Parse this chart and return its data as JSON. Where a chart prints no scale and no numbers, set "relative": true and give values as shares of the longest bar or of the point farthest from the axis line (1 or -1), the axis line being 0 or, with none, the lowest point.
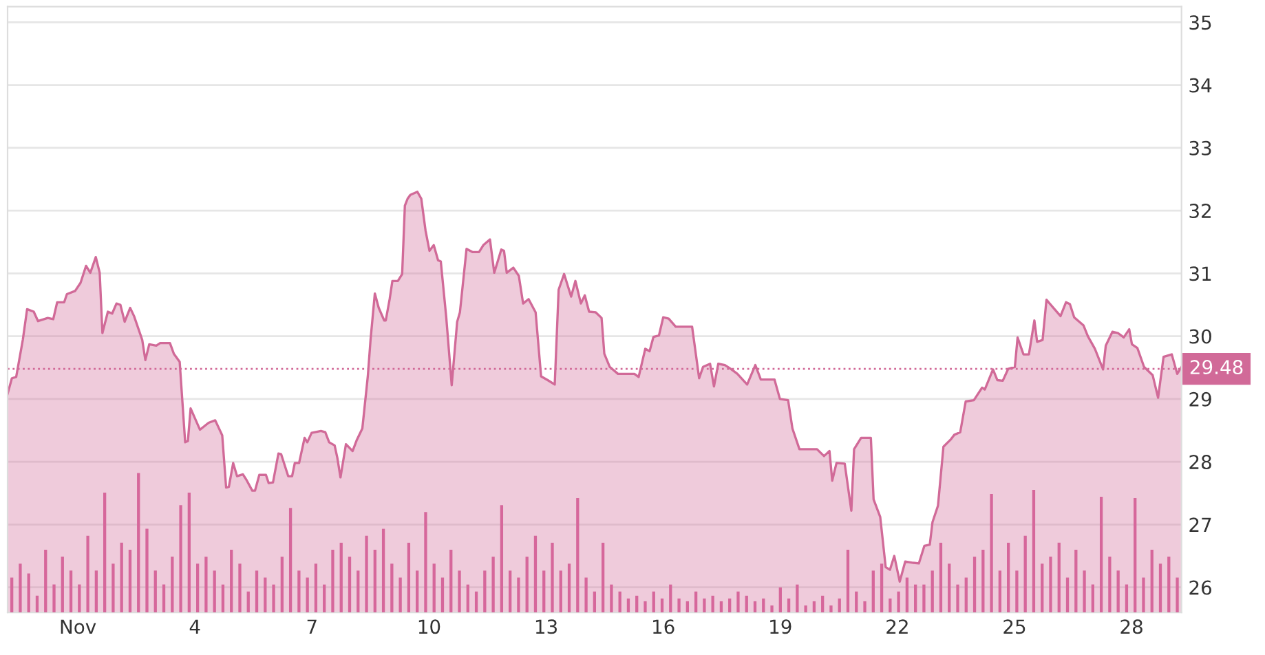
{
  "chart_data": [
    {
      "type": "area",
      "x": [
        -0.8,
        -0.69,
        -0.58,
        -0.41,
        -0.3,
        -0.13,
        -0.02,
        0.23,
        0.37,
        0.47,
        0.65,
        0.72,
        0.93,
        1.07,
        1.21,
        1.32,
        1.46,
        1.56,
        1.63,
        1.77,
        1.88,
        1.99,
        2.09,
        2.2,
        2.34,
        2.44,
        2.65,
        2.73,
        2.83,
        3.01,
        3.11,
        3.36,
        3.46,
        3.61,
        3.75,
        3.82,
        3.89,
        4.13,
        4.35,
        4.52,
        4.7,
        4.8,
        4.87,
        4.98,
        5.08,
        5.23,
        5.33,
        5.47,
        5.54,
        5.65,
        5.82,
        5.89,
        6.0,
        6.14,
        6.21,
        6.39,
        6.49,
        6.56,
        6.67,
        6.81,
        6.88,
        6.99,
        7.23,
        7.34,
        7.44,
        7.58,
        7.65,
        7.73,
        7.87,
        8.04,
        8.15,
        8.29,
        8.43,
        8.5,
        8.61,
        8.71,
        8.85,
        8.89,
        8.99,
        9.06,
        9.2,
        9.31,
        9.38,
        9.45,
        9.52,
        9.7,
        9.8,
        9.91,
        10.01,
        10.12,
        10.23,
        10.3,
        10.44,
        10.58,
        10.72,
        10.79,
        10.96,
        11.11,
        11.28,
        11.39,
        11.56,
        11.67,
        11.85,
        11.92,
        11.99,
        12.16,
        12.3,
        12.41,
        12.55,
        12.73,
        12.87,
        13.04,
        13.22,
        13.32,
        13.46,
        13.64,
        13.75,
        13.89,
        13.99,
        14.1,
        14.27,
        14.42,
        14.49,
        14.63,
        14.84,
        15.26,
        15.37,
        15.54,
        15.65,
        15.75,
        15.89,
        16.0,
        16.14,
        16.32,
        16.74,
        16.92,
        17.02,
        17.2,
        17.3,
        17.41,
        17.58,
        17.73,
        17.9,
        18.15,
        18.36,
        18.5,
        18.85,
        18.99,
        19.2,
        19.31,
        19.49,
        19.94,
        20.12,
        20.26,
        20.33,
        20.44,
        20.65,
        20.82,
        20.89,
        21.07,
        21.32,
        21.39,
        21.56,
        21.7,
        21.81,
        21.92,
        22.06,
        22.2,
        22.41,
        22.55,
        22.69,
        22.83,
        22.9,
        23.04,
        23.18,
        23.36,
        23.46,
        23.61,
        23.75,
        23.96,
        24.17,
        24.24,
        24.45,
        24.56,
        24.7,
        24.84,
        25.01,
        25.08,
        25.23,
        25.37,
        25.51,
        25.58,
        25.72,
        25.82,
        26.0,
        26.18,
        26.32,
        26.42,
        26.53,
        26.77,
        26.88,
        27.06,
        27.27,
        27.34,
        27.51,
        27.65,
        27.8,
        27.94,
        28.01,
        28.15,
        28.32,
        28.54,
        28.68,
        28.82,
        29.03,
        29.17,
        29.28
      ],
      "series": [
        {
          "color": "#d16a98",
          "values": [
            29.08,
            29.33,
            29.35,
            29.94,
            30.43,
            30.39,
            30.24,
            30.29,
            30.27,
            30.54,
            30.54,
            30.67,
            30.72,
            30.85,
            31.12,
            31.01,
            31.26,
            31.01,
            30.05,
            30.39,
            30.36,
            30.52,
            30.5,
            30.23,
            30.45,
            30.32,
            29.94,
            29.62,
            29.87,
            29.85,
            29.89,
            29.89,
            29.72,
            29.59,
            28.31,
            28.33,
            28.85,
            28.51,
            28.62,
            28.66,
            28.42,
            27.59,
            27.6,
            27.98,
            27.77,
            27.8,
            27.7,
            27.54,
            27.54,
            27.79,
            27.79,
            27.66,
            27.67,
            28.13,
            28.12,
            27.77,
            27.77,
            27.98,
            27.98,
            28.38,
            28.31,
            28.46,
            28.49,
            28.47,
            28.31,
            28.26,
            28.06,
            27.75,
            28.28,
            28.17,
            28.35,
            28.53,
            29.36,
            29.94,
            30.68,
            30.45,
            30.25,
            30.25,
            30.59,
            30.88,
            30.88,
            30.99,
            32.08,
            32.19,
            32.25,
            32.3,
            32.19,
            31.68,
            31.36,
            31.45,
            31.21,
            31.19,
            30.3,
            29.22,
            30.23,
            30.38,
            31.39,
            31.34,
            31.34,
            31.45,
            31.54,
            31.01,
            31.38,
            31.36,
            31.01,
            31.09,
            30.96,
            30.52,
            30.59,
            30.38,
            29.36,
            29.3,
            29.23,
            30.74,
            30.99,
            30.63,
            30.88,
            30.52,
            30.65,
            30.39,
            30.38,
            30.29,
            29.72,
            29.51,
            29.4,
            29.4,
            29.35,
            29.8,
            29.76,
            29.99,
            30.01,
            30.3,
            30.28,
            30.15,
            30.15,
            29.33,
            29.51,
            29.56,
            29.2,
            29.56,
            29.54,
            29.48,
            29.4,
            29.23,
            29.54,
            29.31,
            29.31,
            29.0,
            28.98,
            28.53,
            28.2,
            28.2,
            28.09,
            28.17,
            27.7,
            27.98,
            27.97,
            27.22,
            28.2,
            28.38,
            28.38,
            27.4,
            27.12,
            26.32,
            26.28,
            26.5,
            26.09,
            26.41,
            26.39,
            26.38,
            26.66,
            26.68,
            27.04,
            27.3,
            28.24,
            28.35,
            28.43,
            28.47,
            28.96,
            28.98,
            29.18,
            29.15,
            29.47,
            29.3,
            29.29,
            29.48,
            29.51,
            29.98,
            29.71,
            29.71,
            30.25,
            29.91,
            29.94,
            30.58,
            30.45,
            30.32,
            30.54,
            30.51,
            30.3,
            30.17,
            30.0,
            29.8,
            29.47,
            29.85,
            30.07,
            30.05,
            29.98,
            30.11,
            29.87,
            29.81,
            29.51,
            29.38,
            29.02,
            29.67,
            29.71,
            29.4,
            29.51
          ]
        }
      ],
      "xlim": [
        -0.8,
        29.28
      ],
      "xticks": [
        {
          "value": 1,
          "label": "Nov"
        },
        4,
        7,
        10,
        13,
        16,
        19,
        22,
        25,
        28
      ],
      "ylim": [
        25.6,
        35.25
      ],
      "yticks": [
        26,
        27,
        28,
        29,
        30,
        31,
        32,
        33,
        34,
        35
      ],
      "grid": "y",
      "ref_lines": [
        {
          "axis": "y",
          "value": 29.48,
          "label": "29.48",
          "color": "#d16a98",
          "line_style": "dotted"
        }
      ]
    },
    {
      "type": "bar",
      "relative": true,
      "color": "#d6679b",
      "categories": [
        null,
        null,
        null,
        null,
        null,
        null,
        null,
        null,
        null,
        null,
        null,
        null,
        null,
        null,
        null,
        null,
        null,
        null,
        null,
        null,
        null,
        null,
        null,
        null,
        null,
        null,
        null,
        null,
        null,
        null,
        null,
        null,
        null,
        null,
        null,
        null,
        null,
        null,
        null,
        null,
        null,
        null,
        null,
        null,
        null,
        null,
        null,
        null,
        null,
        null,
        null,
        null,
        null,
        null,
        null,
        null,
        null,
        null,
        null,
        null,
        null,
        null,
        null,
        null,
        null,
        null,
        null,
        null,
        null,
        null,
        null,
        null,
        null,
        null,
        null,
        null,
        null,
        null,
        null,
        null,
        null,
        null,
        null,
        null,
        null,
        null,
        null,
        null,
        null,
        null,
        null,
        null,
        null,
        null,
        null,
        null,
        null,
        null,
        null,
        null,
        null,
        null,
        null,
        null,
        null,
        null,
        null,
        null,
        null,
        null,
        null,
        null,
        null,
        null,
        null,
        null,
        null,
        null,
        null,
        null,
        null,
        null,
        null,
        null,
        null,
        null,
        null,
        null,
        null,
        null,
        null,
        null,
        null,
        null,
        null,
        null,
        null,
        null,
        null
      ],
      "values": [
        0.25,
        0.35,
        0.28,
        0.12,
        0.45,
        0.2,
        0.4,
        0.3,
        0.2,
        0.55,
        0.3,
        0.86,
        0.35,
        0.5,
        0.45,
        1,
        0.6,
        0.3,
        0.2,
        0.4,
        0.77,
        0.86,
        0.35,
        0.4,
        0.3,
        0.2,
        0.45,
        0.35,
        0.15,
        0.3,
        0.25,
        0.2,
        0.4,
        0.75,
        0.3,
        0.25,
        0.35,
        0.2,
        0.45,
        0.5,
        0.4,
        0.3,
        0.55,
        0.45,
        0.6,
        0.35,
        0.25,
        0.5,
        0.3,
        0.72,
        0.35,
        0.25,
        0.45,
        0.3,
        0.2,
        0.15,
        0.3,
        0.4,
        0.77,
        0.3,
        0.25,
        0.4,
        0.55,
        0.3,
        0.5,
        0.3,
        0.35,
        0.82,
        0.25,
        0.15,
        0.5,
        0.2,
        0.15,
        0.1,
        0.12,
        0.08,
        0.15,
        0.1,
        0.2,
        0.1,
        0.08,
        0.15,
        0.1,
        0.12,
        0.08,
        0.1,
        0.15,
        0.12,
        0.08,
        0.1,
        0.05,
        0.18,
        0.1,
        0.2,
        0.05,
        0.08,
        0.12,
        0.05,
        0.1,
        0.45,
        0.15,
        0.08,
        0.3,
        0.35,
        0.1,
        0.15,
        0.25,
        0.2,
        0.2,
        0.3,
        0.5,
        0.35,
        0.2,
        0.25,
        0.4,
        0.45,
        0.85,
        0.3,
        0.5,
        0.3,
        0.55,
        0.88,
        0.35,
        0.4,
        0.5,
        0.25,
        0.45,
        0.3,
        0.2,
        0.83,
        0.4,
        0.3,
        0.2,
        0.82,
        0.25,
        0.45,
        0.35,
        0.4,
        0.25
      ]
    }
  ]
}
